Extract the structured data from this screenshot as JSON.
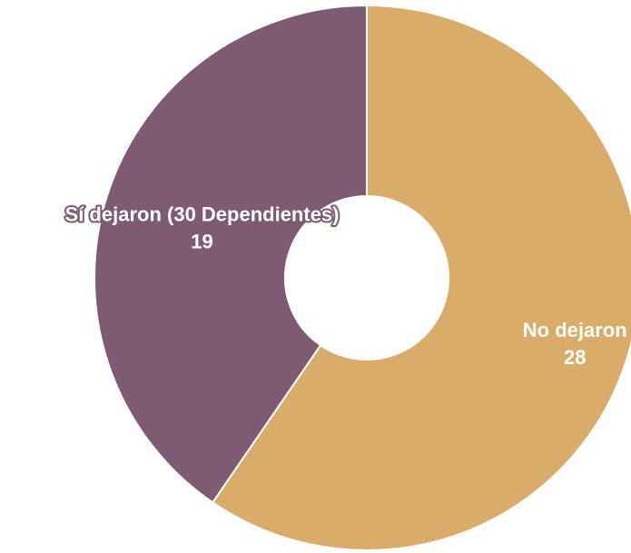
{
  "chart_data": {
    "type": "pie",
    "donut": true,
    "title": "",
    "slices": [
      {
        "label": "No dejaron",
        "value": 28,
        "color": "#D9AC6A"
      },
      {
        "label": "Sí dejaron (30 Dependientes)",
        "value": 19,
        "color": "#7E5A73"
      }
    ],
    "slice_border_color": "#ffffff",
    "label_color": "#ffffff",
    "legend": "none"
  }
}
